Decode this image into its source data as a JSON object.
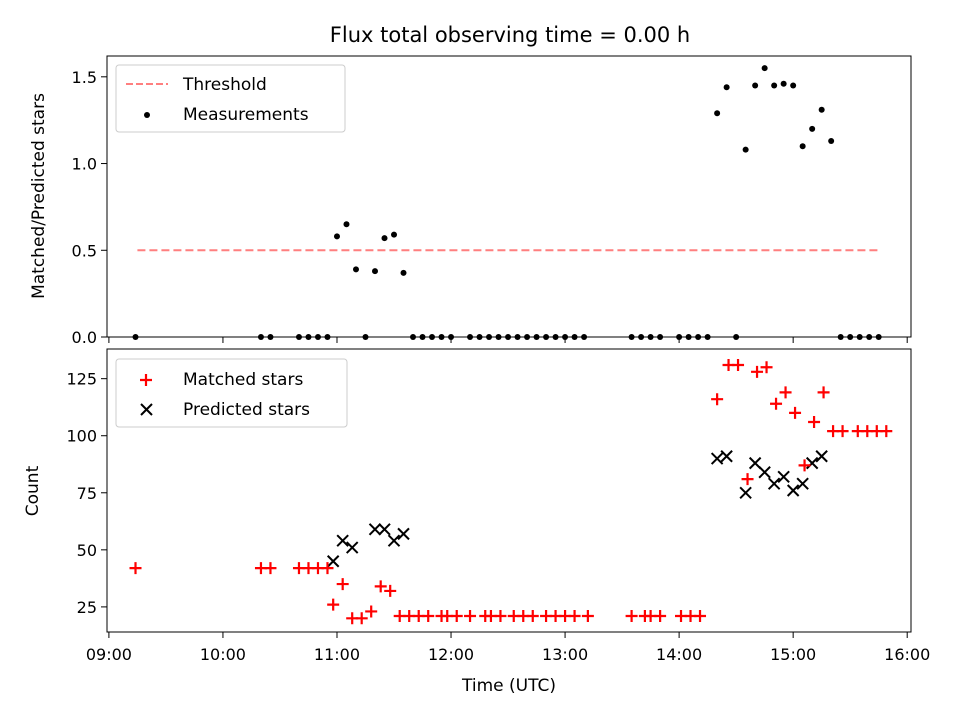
{
  "title": "Flux total observing time = 0.00 h",
  "colors": {
    "threshold": "#ff7f7f",
    "measurement": "#000000",
    "matched": "#ff0000",
    "predicted": "#000000"
  },
  "chart_data": [
    {
      "type": "scatter",
      "ylabel": "Matched/Predicted stars",
      "ylim": [
        0,
        1.62
      ],
      "yticks": [
        "0.0",
        "0.5",
        "1.0",
        "1.5"
      ],
      "xlim": [
        "08:59",
        "16:02"
      ],
      "legend_position": "upper-left",
      "legend": [
        "Threshold",
        "Measurements"
      ],
      "threshold": {
        "name": "Threshold",
        "style": "dashed",
        "x": [
          "09:15",
          "15:45"
        ],
        "y": 0.5
      },
      "series": [
        {
          "name": "Measurements",
          "x": [
            "09:14",
            "10:20",
            "10:25",
            "10:40",
            "10:45",
            "10:50",
            "10:55",
            "11:00",
            "11:05",
            "11:10",
            "11:15",
            "11:20",
            "11:25",
            "11:30",
            "11:35",
            "11:40",
            "11:45",
            "11:50",
            "11:55",
            "12:00",
            "12:10",
            "12:15",
            "12:20",
            "12:25",
            "12:30",
            "12:35",
            "12:40",
            "12:45",
            "12:50",
            "12:55",
            "13:00",
            "13:05",
            "13:10",
            "13:35",
            "13:40",
            "13:45",
            "13:50",
            "14:00",
            "14:05",
            "14:10",
            "14:15",
            "14:20",
            "14:25",
            "14:30",
            "14:35",
            "14:40",
            "14:45",
            "14:50",
            "14:55",
            "15:00",
            "15:05",
            "15:10",
            "15:15",
            "15:20",
            "15:25",
            "15:30",
            "15:35",
            "15:40",
            "15:45"
          ],
          "y": [
            0,
            0,
            0,
            0,
            0,
            0,
            0,
            0.58,
            0.65,
            0.39,
            0,
            0.38,
            0.57,
            0.59,
            0.37,
            0,
            0,
            0,
            0,
            0,
            0,
            0,
            0,
            0,
            0,
            0,
            0,
            0,
            0,
            0,
            0,
            0,
            0,
            0,
            0,
            0,
            0,
            0,
            0,
            0,
            0,
            1.29,
            1.44,
            0,
            1.08,
            1.45,
            1.55,
            1.45,
            1.46,
            1.45,
            1.1,
            1.2,
            1.31,
            1.13,
            0,
            0,
            0,
            0,
            0
          ]
        }
      ]
    },
    {
      "type": "scatter",
      "xlabel": "Time (UTC)",
      "ylabel": "Count",
      "ylim": [
        14,
        138
      ],
      "yticks": [
        "25",
        "50",
        "75",
        "100",
        "125"
      ],
      "xlim": [
        "08:59",
        "16:02"
      ],
      "xticks": [
        "09:00",
        "10:00",
        "11:00",
        "12:00",
        "13:00",
        "14:00",
        "15:00",
        "16:00"
      ],
      "legend_position": "upper-left",
      "legend": [
        "Matched stars",
        "Predicted stars"
      ],
      "series": [
        {
          "name": "Matched stars",
          "marker": "plus",
          "x": [
            "09:14",
            "10:20",
            "10:25",
            "10:40",
            "10:45",
            "10:50",
            "10:55",
            "10:58",
            "11:03",
            "11:08",
            "11:13",
            "11:18",
            "11:23",
            "11:28",
            "11:33",
            "11:38",
            "11:43",
            "11:48",
            "11:55",
            "11:58",
            "12:03",
            "12:10",
            "12:18",
            "12:21",
            "12:26",
            "12:33",
            "12:38",
            "12:43",
            "12:50",
            "12:55",
            "13:00",
            "13:05",
            "13:12",
            "13:35",
            "13:42",
            "13:45",
            "13:50",
            "14:01",
            "14:06",
            "14:11",
            "14:20",
            "14:26",
            "14:31",
            "14:36",
            "14:41",
            "14:46",
            "14:51",
            "14:56",
            "15:01",
            "15:06",
            "15:11",
            "15:16",
            "15:21",
            "15:26",
            "15:34",
            "15:39",
            "15:44",
            "15:49"
          ],
          "y": [
            42,
            42,
            42,
            42,
            42,
            42,
            42,
            26,
            35,
            20,
            20,
            23,
            34,
            32,
            21,
            21,
            21,
            21,
            21,
            21,
            21,
            21,
            21,
            21,
            21,
            21,
            21,
            21,
            21,
            21,
            21,
            21,
            21,
            21,
            21,
            21,
            21,
            21,
            21,
            21,
            116,
            131,
            131,
            81,
            128,
            130,
            114,
            119,
            110,
            87,
            106,
            119,
            102,
            102,
            102,
            102,
            102,
            102
          ],
          "x_offset_note": ""
        },
        {
          "name": "Predicted stars",
          "marker": "x",
          "x": [
            "10:58",
            "11:03",
            "11:08",
            "11:20",
            "11:25",
            "11:30",
            "11:35",
            "14:20",
            "14:25",
            "14:35",
            "14:40",
            "14:45",
            "14:50",
            "14:55",
            "15:00",
            "15:05",
            "15:10",
            "15:15"
          ],
          "y": [
            45,
            54,
            51,
            59,
            59,
            54,
            57,
            90,
            91,
            75,
            88,
            84,
            79,
            82,
            76,
            79,
            88,
            91
          ]
        }
      ]
    }
  ]
}
